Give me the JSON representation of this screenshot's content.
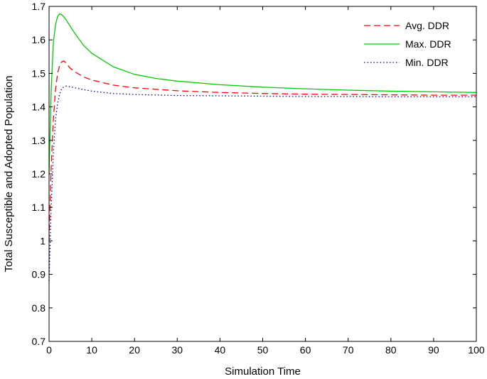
{
  "chart_data": {
    "type": "line",
    "title": "",
    "xlabel": "Simulation Time",
    "ylabel": "Total Susceptible and Adopted Population",
    "xlim": [
      0,
      100
    ],
    "ylim": [
      0.7,
      1.7
    ],
    "xticks": [
      0,
      10,
      20,
      30,
      40,
      50,
      60,
      70,
      80,
      90,
      100
    ],
    "yticks": [
      0.7,
      0.8,
      0.9,
      1.0,
      1.1,
      1.2,
      1.3,
      1.4,
      1.5,
      1.6,
      1.7
    ],
    "xtick_labels": [
      "0",
      "10",
      "20",
      "30",
      "40",
      "50",
      "60",
      "70",
      "80",
      "90",
      "100"
    ],
    "ytick_labels": [
      "0.7",
      "0.8",
      "0.9",
      "1",
      "1.1",
      "1.2",
      "1.3",
      "1.4",
      "1.5",
      "1.6",
      "1.7"
    ],
    "grid": false,
    "legend_position": "top-right",
    "series": [
      {
        "name": "Avg. DDR",
        "color": "#ff0000",
        "style": "dashed",
        "x": [
          0,
          0.5,
          1,
          1.5,
          2,
          2.5,
          3,
          3.5,
          4,
          5,
          6,
          8,
          10,
          15,
          20,
          30,
          40,
          50,
          60,
          70,
          80,
          90,
          100
        ],
        "y": [
          1.0,
          1.22,
          1.36,
          1.45,
          1.5,
          1.525,
          1.535,
          1.537,
          1.53,
          1.515,
          1.505,
          1.49,
          1.48,
          1.465,
          1.457,
          1.448,
          1.443,
          1.44,
          1.438,
          1.437,
          1.436,
          1.435,
          1.435
        ]
      },
      {
        "name": "Max. DDR",
        "color": "#00cc00",
        "style": "solid",
        "x": [
          0,
          0.5,
          1,
          1.5,
          2,
          2.5,
          3,
          3.5,
          4,
          5,
          6,
          8,
          10,
          15,
          20,
          25,
          30,
          40,
          50,
          60,
          70,
          80,
          90,
          100
        ],
        "y": [
          1.2,
          1.45,
          1.59,
          1.645,
          1.67,
          1.678,
          1.675,
          1.668,
          1.66,
          1.64,
          1.62,
          1.585,
          1.56,
          1.52,
          1.497,
          1.485,
          1.477,
          1.466,
          1.459,
          1.454,
          1.45,
          1.447,
          1.445,
          1.443
        ]
      },
      {
        "name": "Min. DDR",
        "color": "#0000cc",
        "style": "dotted",
        "x": [
          0,
          0.5,
          1,
          1.5,
          2,
          2.5,
          3,
          3.5,
          4,
          4.5,
          5,
          6,
          8,
          10,
          15,
          20,
          30,
          40,
          50,
          60,
          70,
          80,
          90,
          100
        ],
        "y": [
          0.88,
          1.1,
          1.26,
          1.36,
          1.41,
          1.44,
          1.455,
          1.46,
          1.462,
          1.461,
          1.46,
          1.457,
          1.452,
          1.447,
          1.44,
          1.437,
          1.434,
          1.433,
          1.432,
          1.431,
          1.431,
          1.43,
          1.43,
          1.43
        ]
      }
    ]
  }
}
